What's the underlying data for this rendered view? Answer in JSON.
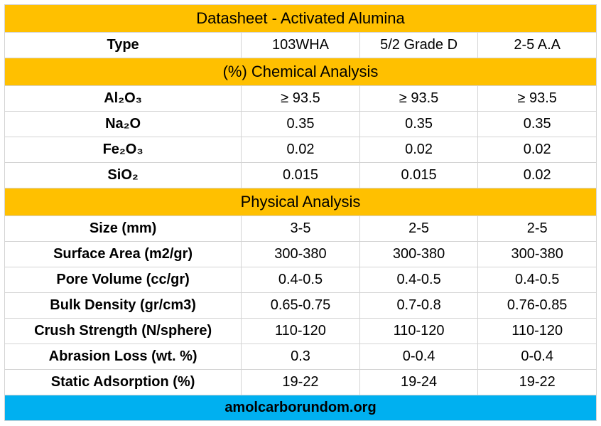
{
  "title": "Datasheet - Activated Alumina",
  "typeLabel": "Type",
  "types": [
    "103WHA",
    "5/2 Grade D",
    "2-5 A.A"
  ],
  "chemHeader": "(%) Chemical Analysis",
  "chem": [
    {
      "label": "Al₂O₃",
      "v": [
        "≥ 93.5",
        "≥ 93.5",
        "≥ 93.5"
      ]
    },
    {
      "label": "Na₂O",
      "v": [
        "0.35",
        "0.35",
        "0.35"
      ]
    },
    {
      "label": "Fe₂O₃",
      "v": [
        "0.02",
        "0.02",
        "0.02"
      ]
    },
    {
      "label": "SiO₂",
      "v": [
        "0.015",
        "0.015",
        "0.02"
      ]
    }
  ],
  "physHeader": "Physical Analysis",
  "phys": [
    {
      "label": "Size (mm)",
      "v": [
        "3-5",
        "2-5",
        "2-5"
      ]
    },
    {
      "label": "Surface Area (m2/gr)",
      "v": [
        "300-380",
        "300-380",
        "300-380"
      ]
    },
    {
      "label": "Pore Volume (cc/gr)",
      "v": [
        "0.4-0.5",
        "0.4-0.5",
        "0.4-0.5"
      ]
    },
    {
      "label": "Bulk Density (gr/cm3)",
      "v": [
        "0.65-0.75",
        "0.7-0.8",
        "0.76-0.85"
      ]
    },
    {
      "label": "Crush Strength (N/sphere)",
      "v": [
        "110-120",
        "110-120",
        "110-120"
      ]
    },
    {
      "label": "Abrasion Loss (wt. %)",
      "v": [
        "0.3",
        "0-0.4",
        "0-0.4"
      ]
    },
    {
      "label": "Static Adsorption (%)",
      "v": [
        "19-22",
        "19-24",
        "19-22"
      ]
    }
  ],
  "footer": "amolcarborundom.org",
  "colors": {
    "orange": "#ffc000",
    "blue": "#00b0f0",
    "border": "#d4d4d4",
    "text": "#000000",
    "bg": "#ffffff"
  },
  "fonts": {
    "family": "Arial",
    "header_size": 22,
    "cell_size": 20
  }
}
